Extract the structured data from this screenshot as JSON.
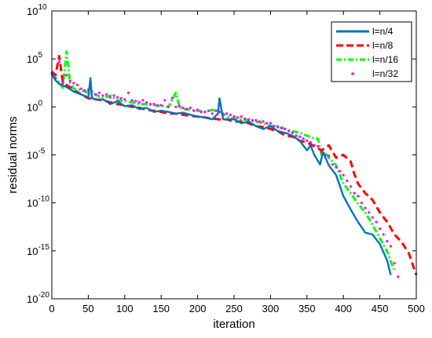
{
  "chart_data": {
    "type": "line",
    "title": "",
    "xlabel": "iteration",
    "ylabel": "residual norms",
    "xlim": [
      0,
      500
    ],
    "ylim": [
      1e-20,
      10000000000.0
    ],
    "y_scale": "log",
    "grid": false,
    "legend_position": "top-right",
    "x_ticks": [
      "0",
      "50",
      "100",
      "150",
      "200",
      "250",
      "300",
      "350",
      "400",
      "450",
      "500"
    ],
    "y_ticks": [
      {
        "base": "10",
        "exp": "-20",
        "value": 1e-20
      },
      {
        "base": "10",
        "exp": "-15",
        "value": 1e-15
      },
      {
        "base": "10",
        "exp": "-10",
        "value": 1e-10
      },
      {
        "base": "10",
        "exp": "-5",
        "value": 1e-05
      },
      {
        "base": "10",
        "exp": "0",
        "value": 1
      },
      {
        "base": "10",
        "exp": "5",
        "value": 100000.0
      },
      {
        "base": "10",
        "exp": "10",
        "value": 10000000000.0
      }
    ],
    "series": [
      {
        "name": "l=n/4",
        "color": "#0072BD",
        "style": "solid",
        "points": [
          [
            0,
            3000.0
          ],
          [
            5,
            600
          ],
          [
            10,
            250
          ],
          [
            20,
            120
          ],
          [
            30,
            40
          ],
          [
            40,
            20
          ],
          [
            50,
            10
          ],
          [
            53,
            1000.0
          ],
          [
            55,
            8
          ],
          [
            60,
            6
          ],
          [
            70,
            6
          ],
          [
            75,
            4
          ],
          [
            80,
            2
          ],
          [
            90,
            4
          ],
          [
            100,
            1.2
          ],
          [
            110,
            1.5
          ],
          [
            120,
            0.6
          ],
          [
            130,
            0.8
          ],
          [
            140,
            0.3
          ],
          [
            150,
            0.4
          ],
          [
            160,
            0.3
          ],
          [
            170,
            0.2
          ],
          [
            180,
            0.25
          ],
          [
            190,
            0.15
          ],
          [
            200,
            0.1
          ],
          [
            210,
            0.08
          ],
          [
            220,
            0.05
          ],
          [
            228,
            0.2
          ],
          [
            230,
            8
          ],
          [
            235,
            0.05
          ],
          [
            240,
            0.05
          ],
          [
            250,
            0.05
          ],
          [
            260,
            0.02
          ],
          [
            270,
            0.03
          ],
          [
            280,
            0.01
          ],
          [
            290,
            0.005
          ],
          [
            300,
            0.01
          ],
          [
            310,
            0.003
          ],
          [
            320,
            0.002
          ],
          [
            330,
            0.001
          ],
          [
            340,
            0.0003
          ],
          [
            350,
            3e-05
          ],
          [
            355,
            0.0001
          ],
          [
            360,
            1e-05
          ],
          [
            368,
            1e-06
          ],
          [
            372,
            2e-05
          ],
          [
            380,
            8e-07
          ],
          [
            390,
            8e-08
          ],
          [
            400,
            5e-10
          ],
          [
            410,
            2e-11
          ],
          [
            420,
            1e-12
          ],
          [
            430,
            8e-14
          ],
          [
            440,
            5e-14
          ],
          [
            450,
            5e-15
          ],
          [
            460,
            1e-16
          ],
          [
            465,
            3e-18
          ]
        ]
      },
      {
        "name": "l=n/8",
        "color": "#FF0000",
        "style": "dashed",
        "points": [
          [
            0,
            5000.0
          ],
          [
            5,
            2000.0
          ],
          [
            10,
            200000.0
          ],
          [
            15,
            400
          ],
          [
            20,
            200
          ],
          [
            30,
            60
          ],
          [
            40,
            20
          ],
          [
            50,
            8
          ],
          [
            60,
            6
          ],
          [
            70,
            5
          ],
          [
            80,
            3
          ],
          [
            90,
            2
          ],
          [
            100,
            1.5
          ],
          [
            110,
            1
          ],
          [
            120,
            0.8
          ],
          [
            130,
            0.5
          ],
          [
            140,
            0.4
          ],
          [
            150,
            0.3
          ],
          [
            160,
            0.2
          ],
          [
            170,
            0.2
          ],
          [
            180,
            0.15
          ],
          [
            190,
            0.12
          ],
          [
            200,
            0.1
          ],
          [
            210,
            0.08
          ],
          [
            220,
            0.06
          ],
          [
            230,
            0.05
          ],
          [
            240,
            0.05
          ],
          [
            250,
            0.03
          ],
          [
            260,
            0.03
          ],
          [
            270,
            0.02
          ],
          [
            280,
            0.01
          ],
          [
            290,
            0.008
          ],
          [
            300,
            0.005
          ],
          [
            310,
            0.003
          ],
          [
            320,
            0.001
          ],
          [
            330,
            0.0008
          ],
          [
            340,
            0.0003
          ],
          [
            350,
            0.0002
          ],
          [
            360,
            8e-05
          ],
          [
            370,
            3e-05
          ],
          [
            380,
            0.0001
          ],
          [
            390,
            5e-06
          ],
          [
            400,
            1e-05
          ],
          [
            410,
            2e-06
          ],
          [
            415,
            1e-07
          ],
          [
            420,
            1e-08
          ],
          [
            430,
            1e-09
          ],
          [
            440,
            2e-10
          ],
          [
            450,
            1e-11
          ],
          [
            460,
            1e-12
          ],
          [
            470,
            5e-14
          ],
          [
            480,
            8e-15
          ],
          [
            490,
            5e-16
          ],
          [
            500,
            3e-18
          ]
        ]
      },
      {
        "name": "l=n/16",
        "color": "#00FF00",
        "style": "dashdot",
        "points": [
          [
            0,
            2000.0
          ],
          [
            5,
            800
          ],
          [
            10,
            400
          ],
          [
            15,
            100
          ],
          [
            20,
            600000.0
          ],
          [
            25,
            300
          ],
          [
            30,
            80
          ],
          [
            40,
            60
          ],
          [
            50,
            30
          ],
          [
            60,
            20
          ],
          [
            70,
            8
          ],
          [
            80,
            15
          ],
          [
            90,
            5
          ],
          [
            100,
            4
          ],
          [
            110,
            3
          ],
          [
            120,
            2
          ],
          [
            130,
            2
          ],
          [
            140,
            1.5
          ],
          [
            150,
            1.2
          ],
          [
            160,
            1
          ],
          [
            170,
            30
          ],
          [
            175,
            1
          ],
          [
            180,
            0.6
          ],
          [
            190,
            0.5
          ],
          [
            200,
            0.4
          ],
          [
            210,
            0.3
          ],
          [
            220,
            0.5
          ],
          [
            230,
            0.4
          ],
          [
            240,
            0.1
          ],
          [
            250,
            0.06
          ],
          [
            260,
            0.05
          ],
          [
            270,
            0.04
          ],
          [
            280,
            0.03
          ],
          [
            290,
            0.02
          ],
          [
            300,
            0.01
          ],
          [
            310,
            0.01
          ],
          [
            320,
            0.005
          ],
          [
            330,
            0.003
          ],
          [
            340,
            0.002
          ],
          [
            350,
            0.001
          ],
          [
            360,
            0.0005
          ],
          [
            365,
            0.0005
          ],
          [
            370,
            1e-05
          ],
          [
            375,
            2e-05
          ],
          [
            380,
            5e-06
          ],
          [
            390,
            8e-07
          ],
          [
            400,
            1e-08
          ],
          [
            410,
            1e-09
          ],
          [
            420,
            8e-11
          ],
          [
            430,
            1e-11
          ],
          [
            440,
            5e-13
          ],
          [
            450,
            2e-14
          ],
          [
            460,
            8e-16
          ],
          [
            470,
            8e-18
          ]
        ]
      },
      {
        "name": "l=n/32",
        "color": "#FF00FF",
        "style": "dotted",
        "points": [
          [
            0,
            3000.0
          ],
          [
            5,
            1000.0
          ],
          [
            10,
            50000.0
          ],
          [
            15,
            300
          ],
          [
            20,
            2000.0
          ],
          [
            25,
            500
          ],
          [
            30,
            300
          ],
          [
            35,
            200
          ],
          [
            40,
            80
          ],
          [
            45,
            50
          ],
          [
            50,
            60
          ],
          [
            55,
            40
          ],
          [
            60,
            20
          ],
          [
            65,
            30
          ],
          [
            70,
            15
          ],
          [
            75,
            20
          ],
          [
            80,
            10
          ],
          [
            85,
            15
          ],
          [
            90,
            10
          ],
          [
            95,
            8
          ],
          [
            100,
            6
          ],
          [
            105,
            30
          ],
          [
            110,
            5
          ],
          [
            115,
            4
          ],
          [
            120,
            3
          ],
          [
            125,
            5
          ],
          [
            130,
            3
          ],
          [
            135,
            2
          ],
          [
            140,
            2
          ],
          [
            145,
            1.5
          ],
          [
            150,
            1.5
          ],
          [
            155,
            5
          ],
          [
            160,
            1
          ],
          [
            165,
            8
          ],
          [
            170,
            1
          ],
          [
            175,
            1.2
          ],
          [
            180,
            0.8
          ],
          [
            185,
            0.6
          ],
          [
            190,
            0.8
          ],
          [
            195,
            0.4
          ],
          [
            200,
            0.5
          ],
          [
            205,
            0.3
          ],
          [
            210,
            0.3
          ],
          [
            215,
            0.4
          ],
          [
            220,
            0.2
          ],
          [
            225,
            0.4
          ],
          [
            230,
            0.3
          ],
          [
            235,
            0.15
          ],
          [
            240,
            0.2
          ],
          [
            245,
            0.15
          ],
          [
            250,
            0.1
          ],
          [
            255,
            0.08
          ],
          [
            260,
            0.1
          ],
          [
            265,
            0.06
          ],
          [
            270,
            0.05
          ],
          [
            275,
            0.04
          ],
          [
            280,
            0.04
          ],
          [
            285,
            0.03
          ],
          [
            290,
            0.03
          ],
          [
            295,
            0.02
          ],
          [
            300,
            0.02
          ],
          [
            305,
            0.01
          ],
          [
            310,
            0.008
          ],
          [
            315,
            0.006
          ],
          [
            320,
            0.005
          ],
          [
            325,
            0.003
          ],
          [
            330,
            0.002
          ],
          [
            335,
            0.001
          ],
          [
            340,
            0.0008
          ],
          [
            345,
            0.0005
          ],
          [
            350,
            0.0003
          ],
          [
            355,
            0.0002
          ],
          [
            360,
            0.0001
          ],
          [
            365,
            8e-05
          ],
          [
            370,
            2e-05
          ],
          [
            375,
            1e-05
          ],
          [
            380,
            8e-06
          ],
          [
            385,
            1e-06
          ],
          [
            390,
            5e-07
          ],
          [
            395,
            2e-07
          ],
          [
            400,
            8e-08
          ],
          [
            405,
            2e-08
          ],
          [
            410,
            5e-09
          ],
          [
            415,
            1e-09
          ],
          [
            420,
            5e-10
          ],
          [
            425,
            1e-10
          ],
          [
            430,
            3e-11
          ],
          [
            435,
            1e-11
          ],
          [
            440,
            3e-12
          ],
          [
            445,
            1e-12
          ],
          [
            450,
            2e-13
          ],
          [
            455,
            5e-14
          ],
          [
            460,
            1e-14
          ],
          [
            465,
            3e-15
          ],
          [
            470,
            5e-17
          ],
          [
            475,
            2e-18
          ]
        ]
      }
    ]
  }
}
